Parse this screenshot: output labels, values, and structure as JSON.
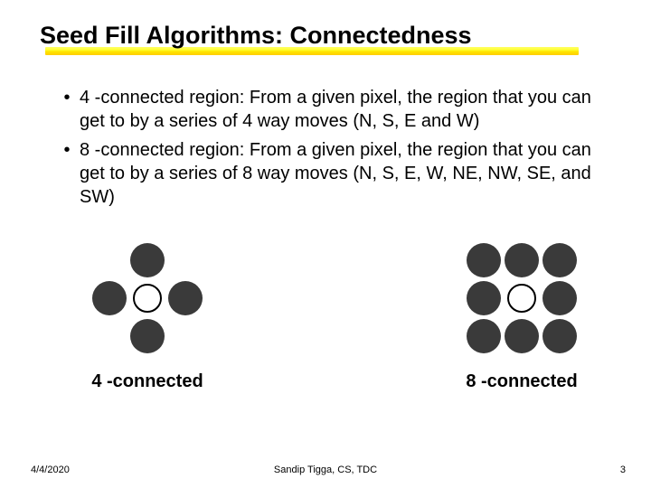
{
  "title": "Seed Fill Algorithms: Connectedness",
  "bullets": [
    "4 -connected region: From a given pixel, the region that you can get to by a series of 4 way moves (N, S, E and W)",
    "8 -connected region: From a given pixel, the region that you can get to by a series of 8 way moves (N, S, E, W, NE, NW, SE, and SW)"
  ],
  "diagrams": {
    "four": {
      "label": "4 -connected",
      "pattern": [
        [
          0,
          1,
          0
        ],
        [
          1,
          2,
          1
        ],
        [
          0,
          1,
          0
        ]
      ]
    },
    "eight": {
      "label": "8 -connected",
      "pattern": [
        [
          1,
          1,
          1
        ],
        [
          1,
          2,
          1
        ],
        [
          1,
          1,
          1
        ]
      ]
    }
  },
  "colors": {
    "dot_fill": "#3a3a3a",
    "ring_border": "#000000",
    "highlight_gradient_top": "#ffff66",
    "highlight_gradient_bottom": "#ffcc00",
    "background": "#ffffff"
  },
  "footer": {
    "date": "4/4/2020",
    "author": "Sandip Tigga, CS, TDC",
    "page": "3"
  }
}
